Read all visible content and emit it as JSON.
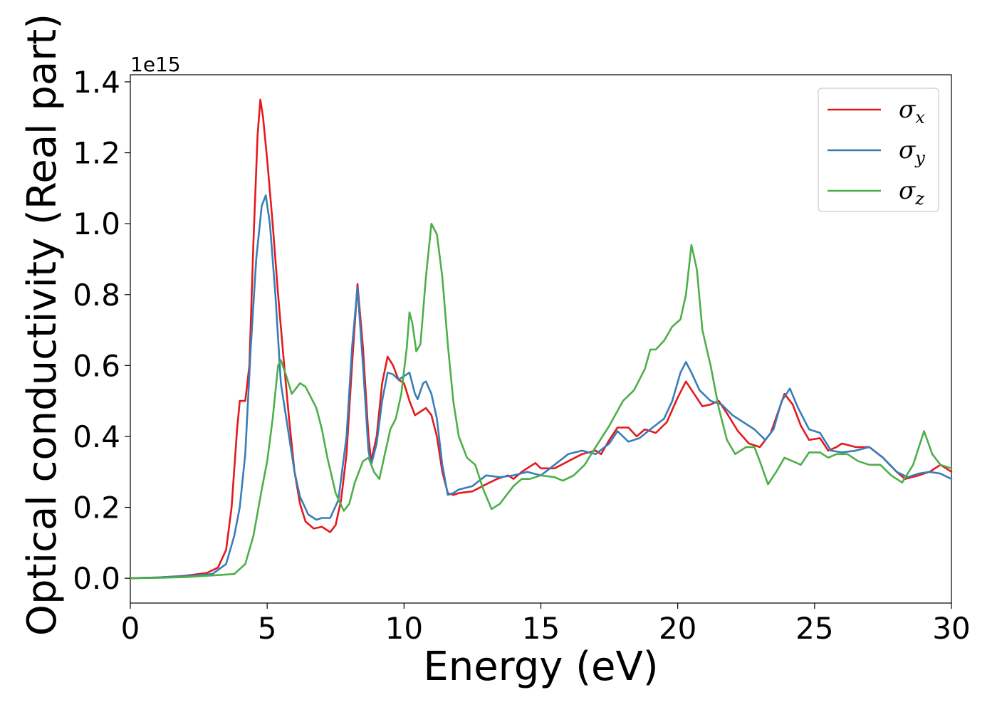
{
  "chart_data": {
    "type": "line",
    "title": "",
    "xlabel": "Energy (eV)",
    "ylabel": "Optical conductivity (Real part)",
    "y_offset_label": "1e15",
    "xlim": [
      0,
      30
    ],
    "ylim": [
      -0.07,
      1.42
    ],
    "xticks": [
      "0",
      "5",
      "10",
      "15",
      "20",
      "25",
      "30"
    ],
    "xtick_values": [
      0,
      5,
      10,
      15,
      20,
      25,
      30
    ],
    "yticks": [
      "0.0",
      "0.2",
      "0.4",
      "0.6",
      "0.8",
      "1.0",
      "1.2",
      "1.4"
    ],
    "ytick_values": [
      0.0,
      0.2,
      0.4,
      0.6,
      0.8,
      1.0,
      1.2,
      1.4
    ],
    "grid": false,
    "legend_position": "top-right",
    "series": [
      {
        "name": "σx",
        "symbol": "σ",
        "subscript": "x",
        "color": "#e41a1c",
        "points": [
          [
            0,
            0
          ],
          [
            1,
            0.002
          ],
          [
            2,
            0.007
          ],
          [
            2.8,
            0.015
          ],
          [
            3.2,
            0.03
          ],
          [
            3.5,
            0.08
          ],
          [
            3.7,
            0.2
          ],
          [
            3.9,
            0.42
          ],
          [
            4.0,
            0.5
          ],
          [
            4.2,
            0.5
          ],
          [
            4.35,
            0.6
          ],
          [
            4.5,
            0.95
          ],
          [
            4.65,
            1.25
          ],
          [
            4.75,
            1.35
          ],
          [
            4.85,
            1.3
          ],
          [
            5.0,
            1.18
          ],
          [
            5.2,
            1.0
          ],
          [
            5.4,
            0.8
          ],
          [
            5.6,
            0.62
          ],
          [
            5.8,
            0.45
          ],
          [
            6.0,
            0.3
          ],
          [
            6.2,
            0.21
          ],
          [
            6.4,
            0.16
          ],
          [
            6.7,
            0.14
          ],
          [
            7.0,
            0.145
          ],
          [
            7.3,
            0.13
          ],
          [
            7.5,
            0.15
          ],
          [
            7.7,
            0.22
          ],
          [
            7.9,
            0.35
          ],
          [
            8.1,
            0.6
          ],
          [
            8.3,
            0.83
          ],
          [
            8.5,
            0.65
          ],
          [
            8.7,
            0.4
          ],
          [
            8.8,
            0.33
          ],
          [
            9.0,
            0.4
          ],
          [
            9.2,
            0.55
          ],
          [
            9.4,
            0.625
          ],
          [
            9.6,
            0.6
          ],
          [
            9.8,
            0.56
          ],
          [
            10.0,
            0.55
          ],
          [
            10.2,
            0.5
          ],
          [
            10.4,
            0.46
          ],
          [
            10.6,
            0.47
          ],
          [
            10.8,
            0.48
          ],
          [
            11.0,
            0.46
          ],
          [
            11.2,
            0.4
          ],
          [
            11.4,
            0.3
          ],
          [
            11.6,
            0.24
          ],
          [
            11.8,
            0.235
          ],
          [
            12.0,
            0.24
          ],
          [
            12.5,
            0.245
          ],
          [
            13.0,
            0.265
          ],
          [
            13.4,
            0.28
          ],
          [
            13.8,
            0.29
          ],
          [
            14.0,
            0.28
          ],
          [
            14.3,
            0.3
          ],
          [
            14.8,
            0.325
          ],
          [
            15.0,
            0.31
          ],
          [
            15.5,
            0.31
          ],
          [
            16.0,
            0.33
          ],
          [
            16.5,
            0.35
          ],
          [
            17.0,
            0.36
          ],
          [
            17.2,
            0.35
          ],
          [
            17.5,
            0.39
          ],
          [
            17.8,
            0.425
          ],
          [
            18.2,
            0.425
          ],
          [
            18.5,
            0.4
          ],
          [
            18.8,
            0.42
          ],
          [
            19.2,
            0.41
          ],
          [
            19.6,
            0.44
          ],
          [
            20.0,
            0.51
          ],
          [
            20.3,
            0.555
          ],
          [
            20.6,
            0.52
          ],
          [
            20.9,
            0.485
          ],
          [
            21.2,
            0.49
          ],
          [
            21.5,
            0.5
          ],
          [
            21.8,
            0.465
          ],
          [
            22.2,
            0.415
          ],
          [
            22.6,
            0.38
          ],
          [
            23.0,
            0.37
          ],
          [
            23.4,
            0.41
          ],
          [
            23.9,
            0.52
          ],
          [
            24.2,
            0.49
          ],
          [
            24.5,
            0.43
          ],
          [
            24.8,
            0.39
          ],
          [
            25.2,
            0.395
          ],
          [
            25.5,
            0.36
          ],
          [
            25.8,
            0.37
          ],
          [
            26.0,
            0.38
          ],
          [
            26.5,
            0.37
          ],
          [
            27.0,
            0.37
          ],
          [
            27.5,
            0.34
          ],
          [
            28.0,
            0.3
          ],
          [
            28.3,
            0.28
          ],
          [
            28.8,
            0.29
          ],
          [
            29.2,
            0.3
          ],
          [
            29.6,
            0.32
          ],
          [
            30.0,
            0.3
          ]
        ]
      },
      {
        "name": "σy",
        "symbol": "σ",
        "subscript": "y",
        "color": "#377eb8",
        "points": [
          [
            0,
            0
          ],
          [
            1,
            0.002
          ],
          [
            2,
            0.006
          ],
          [
            3.0,
            0.012
          ],
          [
            3.5,
            0.04
          ],
          [
            3.8,
            0.12
          ],
          [
            4.0,
            0.2
          ],
          [
            4.2,
            0.35
          ],
          [
            4.4,
            0.65
          ],
          [
            4.6,
            0.9
          ],
          [
            4.8,
            1.05
          ],
          [
            4.95,
            1.08
          ],
          [
            5.1,
            1.0
          ],
          [
            5.3,
            0.8
          ],
          [
            5.5,
            0.55
          ],
          [
            5.8,
            0.4
          ],
          [
            6.0,
            0.3
          ],
          [
            6.2,
            0.23
          ],
          [
            6.5,
            0.18
          ],
          [
            6.8,
            0.165
          ],
          [
            7.0,
            0.17
          ],
          [
            7.3,
            0.17
          ],
          [
            7.6,
            0.22
          ],
          [
            7.9,
            0.4
          ],
          [
            8.1,
            0.65
          ],
          [
            8.3,
            0.82
          ],
          [
            8.5,
            0.6
          ],
          [
            8.7,
            0.36
          ],
          [
            8.8,
            0.32
          ],
          [
            9.0,
            0.38
          ],
          [
            9.2,
            0.5
          ],
          [
            9.4,
            0.58
          ],
          [
            9.6,
            0.575
          ],
          [
            9.8,
            0.56
          ],
          [
            10.0,
            0.57
          ],
          [
            10.2,
            0.58
          ],
          [
            10.4,
            0.52
          ],
          [
            10.5,
            0.505
          ],
          [
            10.7,
            0.55
          ],
          [
            10.8,
            0.555
          ],
          [
            11.0,
            0.52
          ],
          [
            11.2,
            0.45
          ],
          [
            11.4,
            0.32
          ],
          [
            11.6,
            0.235
          ],
          [
            11.8,
            0.24
          ],
          [
            12.0,
            0.25
          ],
          [
            12.5,
            0.26
          ],
          [
            13.0,
            0.29
          ],
          [
            13.5,
            0.285
          ],
          [
            14.0,
            0.29
          ],
          [
            14.5,
            0.3
          ],
          [
            15.0,
            0.29
          ],
          [
            15.5,
            0.32
          ],
          [
            16.0,
            0.35
          ],
          [
            16.5,
            0.36
          ],
          [
            17.0,
            0.35
          ],
          [
            17.5,
            0.38
          ],
          [
            17.8,
            0.415
          ],
          [
            18.2,
            0.385
          ],
          [
            18.6,
            0.395
          ],
          [
            19.0,
            0.42
          ],
          [
            19.5,
            0.45
          ],
          [
            19.8,
            0.5
          ],
          [
            20.1,
            0.58
          ],
          [
            20.3,
            0.61
          ],
          [
            20.5,
            0.58
          ],
          [
            20.8,
            0.53
          ],
          [
            21.2,
            0.5
          ],
          [
            21.6,
            0.49
          ],
          [
            22.0,
            0.46
          ],
          [
            22.4,
            0.44
          ],
          [
            22.8,
            0.42
          ],
          [
            23.2,
            0.39
          ],
          [
            23.5,
            0.42
          ],
          [
            23.8,
            0.5
          ],
          [
            24.1,
            0.535
          ],
          [
            24.4,
            0.48
          ],
          [
            24.8,
            0.42
          ],
          [
            25.2,
            0.41
          ],
          [
            25.6,
            0.36
          ],
          [
            26.0,
            0.355
          ],
          [
            26.5,
            0.36
          ],
          [
            27.0,
            0.37
          ],
          [
            27.5,
            0.34
          ],
          [
            28.0,
            0.3
          ],
          [
            28.4,
            0.285
          ],
          [
            28.8,
            0.295
          ],
          [
            29.2,
            0.3
          ],
          [
            29.6,
            0.295
          ],
          [
            30.0,
            0.28
          ]
        ]
      },
      {
        "name": "σz",
        "symbol": "σ",
        "subscript": "z",
        "color": "#4daf4a",
        "points": [
          [
            0,
            0
          ],
          [
            1,
            0.001
          ],
          [
            2,
            0.003
          ],
          [
            3.0,
            0.008
          ],
          [
            3.8,
            0.012
          ],
          [
            4.2,
            0.04
          ],
          [
            4.5,
            0.12
          ],
          [
            4.8,
            0.25
          ],
          [
            5.0,
            0.33
          ],
          [
            5.2,
            0.45
          ],
          [
            5.4,
            0.6
          ],
          [
            5.5,
            0.615
          ],
          [
            5.7,
            0.57
          ],
          [
            5.9,
            0.52
          ],
          [
            6.0,
            0.53
          ],
          [
            6.2,
            0.55
          ],
          [
            6.4,
            0.54
          ],
          [
            6.6,
            0.51
          ],
          [
            6.8,
            0.48
          ],
          [
            7.0,
            0.42
          ],
          [
            7.2,
            0.34
          ],
          [
            7.5,
            0.24
          ],
          [
            7.8,
            0.19
          ],
          [
            8.0,
            0.21
          ],
          [
            8.2,
            0.27
          ],
          [
            8.5,
            0.33
          ],
          [
            8.7,
            0.34
          ],
          [
            8.9,
            0.3
          ],
          [
            9.1,
            0.28
          ],
          [
            9.3,
            0.35
          ],
          [
            9.5,
            0.42
          ],
          [
            9.7,
            0.45
          ],
          [
            9.9,
            0.52
          ],
          [
            10.1,
            0.65
          ],
          [
            10.2,
            0.75
          ],
          [
            10.3,
            0.72
          ],
          [
            10.45,
            0.64
          ],
          [
            10.6,
            0.66
          ],
          [
            10.8,
            0.85
          ],
          [
            11.0,
            1.0
          ],
          [
            11.2,
            0.97
          ],
          [
            11.4,
            0.85
          ],
          [
            11.6,
            0.66
          ],
          [
            11.8,
            0.5
          ],
          [
            12.0,
            0.4
          ],
          [
            12.3,
            0.34
          ],
          [
            12.6,
            0.32
          ],
          [
            12.9,
            0.25
          ],
          [
            13.2,
            0.195
          ],
          [
            13.5,
            0.21
          ],
          [
            13.8,
            0.24
          ],
          [
            14.0,
            0.26
          ],
          [
            14.3,
            0.28
          ],
          [
            14.6,
            0.28
          ],
          [
            15.0,
            0.29
          ],
          [
            15.5,
            0.285
          ],
          [
            15.8,
            0.275
          ],
          [
            16.2,
            0.29
          ],
          [
            16.6,
            0.32
          ],
          [
            17.0,
            0.37
          ],
          [
            17.5,
            0.43
          ],
          [
            18.0,
            0.5
          ],
          [
            18.4,
            0.53
          ],
          [
            18.8,
            0.59
          ],
          [
            19.0,
            0.645
          ],
          [
            19.2,
            0.645
          ],
          [
            19.5,
            0.67
          ],
          [
            19.8,
            0.71
          ],
          [
            20.1,
            0.73
          ],
          [
            20.3,
            0.8
          ],
          [
            20.5,
            0.94
          ],
          [
            20.7,
            0.87
          ],
          [
            20.9,
            0.7
          ],
          [
            21.2,
            0.6
          ],
          [
            21.5,
            0.48
          ],
          [
            21.8,
            0.39
          ],
          [
            22.1,
            0.35
          ],
          [
            22.5,
            0.37
          ],
          [
            22.8,
            0.37
          ],
          [
            23.0,
            0.33
          ],
          [
            23.3,
            0.265
          ],
          [
            23.6,
            0.3
          ],
          [
            23.9,
            0.34
          ],
          [
            24.2,
            0.33
          ],
          [
            24.5,
            0.32
          ],
          [
            24.8,
            0.355
          ],
          [
            25.2,
            0.355
          ],
          [
            25.5,
            0.34
          ],
          [
            25.8,
            0.35
          ],
          [
            26.2,
            0.35
          ],
          [
            26.6,
            0.33
          ],
          [
            27.0,
            0.32
          ],
          [
            27.4,
            0.32
          ],
          [
            27.8,
            0.29
          ],
          [
            28.2,
            0.27
          ],
          [
            28.6,
            0.32
          ],
          [
            29.0,
            0.415
          ],
          [
            29.3,
            0.35
          ],
          [
            29.6,
            0.32
          ],
          [
            30.0,
            0.31
          ]
        ]
      }
    ]
  }
}
